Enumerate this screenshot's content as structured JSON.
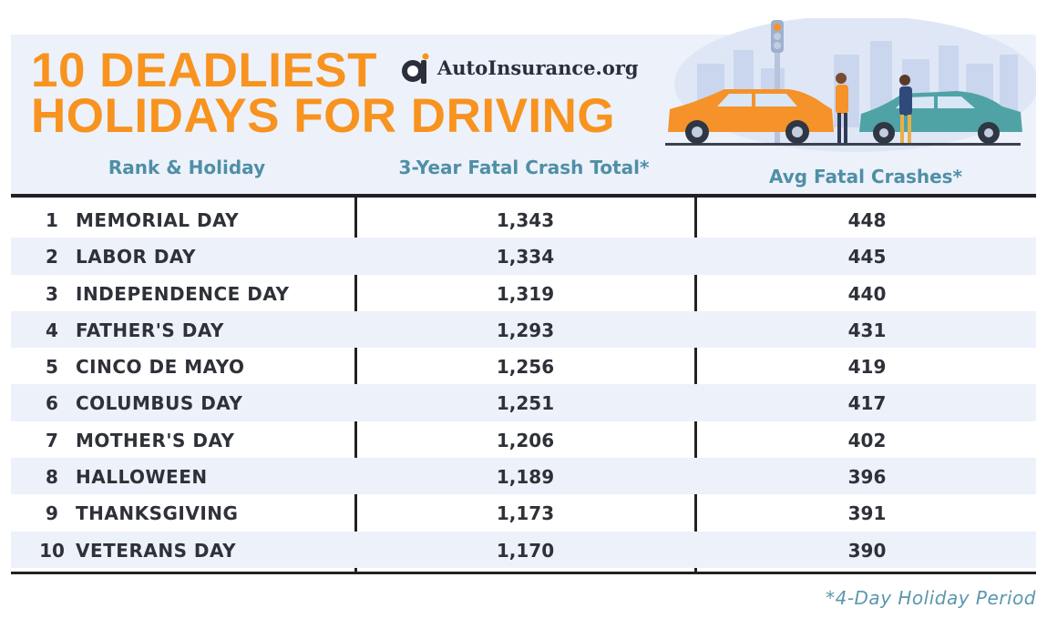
{
  "header": {
    "title_line1": "10 DEADLIEST",
    "title_line2": "HOLIDAYS FOR DRIVING",
    "brand": "AutoInsurance.org",
    "brand_icon": "ai-logo-icon",
    "illustration": "car-crash-illustration"
  },
  "columns": [
    "Rank & Holiday",
    "3-Year Fatal Crash Total*",
    "Avg Fatal Crashes*"
  ],
  "footnote": "*4-Day Holiday Period",
  "colors": {
    "title": "#f7931e",
    "header_text": "#4f8fa6",
    "stripe": "#edf1fa",
    "rule": "#222222"
  },
  "chart_data": {
    "type": "table",
    "columns": [
      "Rank",
      "Holiday",
      "3-Year Fatal Crash Total*",
      "Avg Fatal Crashes*"
    ],
    "rows": [
      {
        "rank": "1",
        "holiday": "MEMORIAL DAY",
        "total": "1,343",
        "avg": "448"
      },
      {
        "rank": "2",
        "holiday": "LABOR DAY",
        "total": "1,334",
        "avg": "445"
      },
      {
        "rank": "3",
        "holiday": "INDEPENDENCE DAY",
        "total": "1,319",
        "avg": "440"
      },
      {
        "rank": "4",
        "holiday": "FATHER'S DAY",
        "total": "1,293",
        "avg": "431"
      },
      {
        "rank": "5",
        "holiday": "CINCO DE MAYO",
        "total": "1,256",
        "avg": "419"
      },
      {
        "rank": "6",
        "holiday": "COLUMBUS DAY",
        "total": "1,251",
        "avg": "417"
      },
      {
        "rank": "7",
        "holiday": "MOTHER'S DAY",
        "total": "1,206",
        "avg": "402"
      },
      {
        "rank": "8",
        "holiday": "HALLOWEEN",
        "total": "1,189",
        "avg": "396"
      },
      {
        "rank": "9",
        "holiday": "THANKSGIVING",
        "total": "1,173",
        "avg": "391"
      },
      {
        "rank": "10",
        "holiday": "VETERANS DAY",
        "total": "1,170",
        "avg": "390"
      }
    ]
  }
}
